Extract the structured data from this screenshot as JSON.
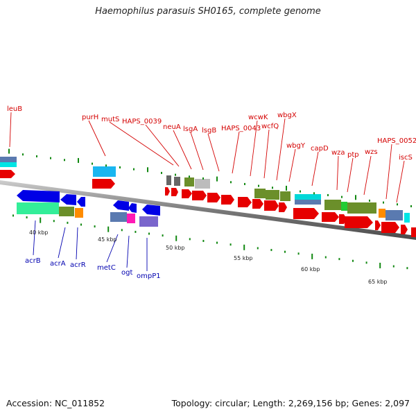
{
  "title": "Haemophilus parasuis SH0165, complete genome",
  "accession": "Accession: NC_011852",
  "topology": "Topology: circular; Length: 2,269,156 bp; Genes: 2,097",
  "colors": {
    "label_top": "#d40000",
    "label_bottom": "#0000b0",
    "backbone": "#888888",
    "tick": "#118811"
  },
  "top_labels": [
    {
      "text": "leuB"
    },
    {
      "text": "purH"
    },
    {
      "text": "mutS"
    },
    {
      "text": "HAPS_0039"
    },
    {
      "text": "neuA"
    },
    {
      "text": "lsgA"
    },
    {
      "text": "lsgB"
    },
    {
      "text": "HAPS_0043"
    },
    {
      "text": "wcwK"
    },
    {
      "text": "wcfQ"
    },
    {
      "text": "wbgX"
    },
    {
      "text": "wbgY"
    },
    {
      "text": "capD"
    },
    {
      "text": "wza"
    },
    {
      "text": "ptp"
    },
    {
      "text": "wzs"
    },
    {
      "text": "HAPS_0052"
    },
    {
      "text": "iscS"
    }
  ],
  "bottom_labels": [
    {
      "text": "acrB"
    },
    {
      "text": "acrA"
    },
    {
      "text": "acrR"
    },
    {
      "text": "metC"
    },
    {
      "text": "ogt"
    },
    {
      "text": "ompP1"
    }
  ],
  "kbp_labels": [
    "40 kbp",
    "45 kbp",
    "50 kbp",
    "55 kbp",
    "60 kbp",
    "65 kbp"
  ]
}
